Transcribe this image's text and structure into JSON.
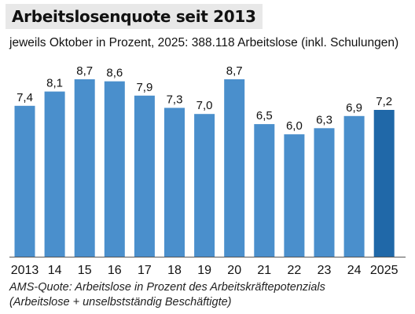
{
  "chart_data": {
    "type": "bar",
    "title": "Arbeitslosenquote seit 2013",
    "subtitle": "jeweils Oktober in Prozent, 2025: 388.118 Arbeitslose (inkl. Schulungen)",
    "categories": [
      "2013",
      "14",
      "15",
      "16",
      "17",
      "18",
      "19",
      "20",
      "21",
      "22",
      "23",
      "24",
      "2025"
    ],
    "value_labels": [
      "7,4",
      "8,1",
      "8,7",
      "8,6",
      "7,9",
      "7,3",
      "7,0",
      "8,7",
      "6,5",
      "6,0",
      "6,3",
      "6,9",
      "7,2"
    ],
    "values": [
      7.4,
      8.1,
      8.7,
      8.6,
      7.9,
      7.3,
      7.0,
      8.7,
      6.5,
      6.0,
      6.3,
      6.9,
      7.2
    ],
    "ylim": [
      0,
      8.7
    ],
    "xlabel": "",
    "ylabel": "",
    "grid": false,
    "colors": {
      "bar": "#4a8fcc",
      "highlight": "#2068a8",
      "axis": "#555555"
    },
    "highlight_index": 12
  },
  "footnote": {
    "line1": "AMS-Quote: Arbeitslose in Prozent des Arbeitskräftepotenzials",
    "line2": "(Arbeitslose + unselbstständig Beschäftigte)"
  }
}
